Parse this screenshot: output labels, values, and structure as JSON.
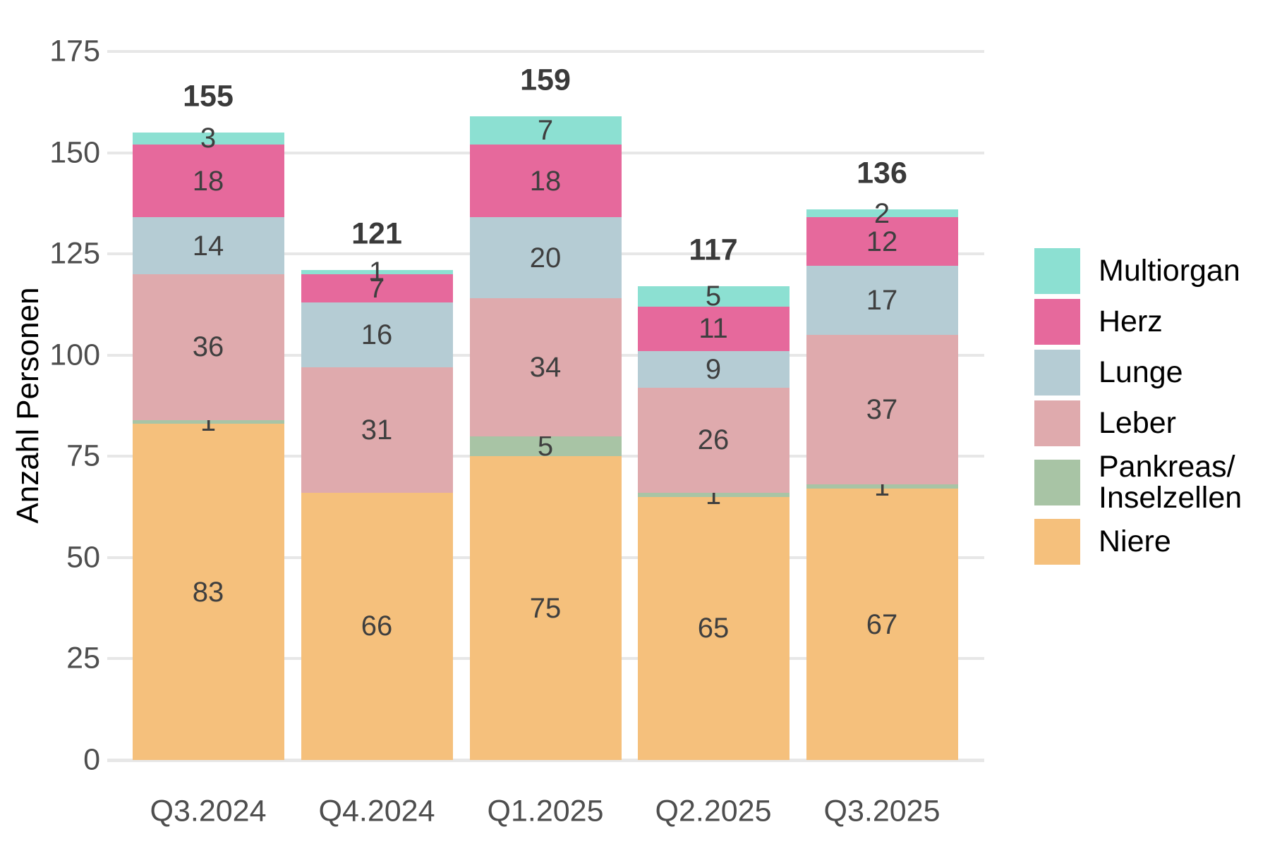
{
  "chart_data": {
    "type": "bar",
    "stacked": true,
    "title": "",
    "xlabel": "",
    "ylabel": "Anzahl Personen",
    "ylim": [
      0,
      175
    ],
    "ytick_step": 25,
    "yticks": [
      0,
      25,
      50,
      75,
      100,
      125,
      150,
      175
    ],
    "grid": "horizontal",
    "legend_position": "right",
    "categories": [
      "Q3.2024",
      "Q4.2024",
      "Q1.2025",
      "Q2.2025",
      "Q3.2025"
    ],
    "series": [
      {
        "name": "Niere",
        "color": "#f5c07c",
        "values": [
          83,
          66,
          75,
          65,
          67
        ]
      },
      {
        "name": "Pankreas/Inselzellen",
        "color": "#a8c4a5",
        "values": [
          1,
          0,
          5,
          1,
          1
        ]
      },
      {
        "name": "Leber",
        "color": "#dfaaad",
        "values": [
          36,
          31,
          34,
          26,
          37
        ]
      },
      {
        "name": "Lunge",
        "color": "#b5ccd4",
        "values": [
          14,
          16,
          20,
          9,
          17
        ]
      },
      {
        "name": "Herz",
        "color": "#e6699c",
        "values": [
          18,
          7,
          18,
          11,
          12
        ]
      },
      {
        "name": "Multiorgan",
        "color": "#8ce0d2",
        "values": [
          3,
          1,
          7,
          5,
          2
        ]
      }
    ],
    "totals": [
      155,
      121,
      159,
      117,
      136
    ],
    "legend_entries": [
      {
        "label": "Multiorgan",
        "color": "#8ce0d2"
      },
      {
        "label": "Herz",
        "color": "#e6699c"
      },
      {
        "label": "Lunge",
        "color": "#b5ccd4"
      },
      {
        "label": "Leber",
        "color": "#dfaaad"
      },
      {
        "label": "Pankreas/\nInselzellen",
        "color": "#a8c4a5"
      },
      {
        "label": "Niere",
        "color": "#f5c07c"
      }
    ]
  },
  "colors": {
    "background": "#ffffff",
    "gridline": "#e7e7e7",
    "axis_text": "#4e4e4e",
    "segment_label_text": "#3f3f3f",
    "total_label_text": "#3a3a3a",
    "legend_text": "#000000"
  }
}
